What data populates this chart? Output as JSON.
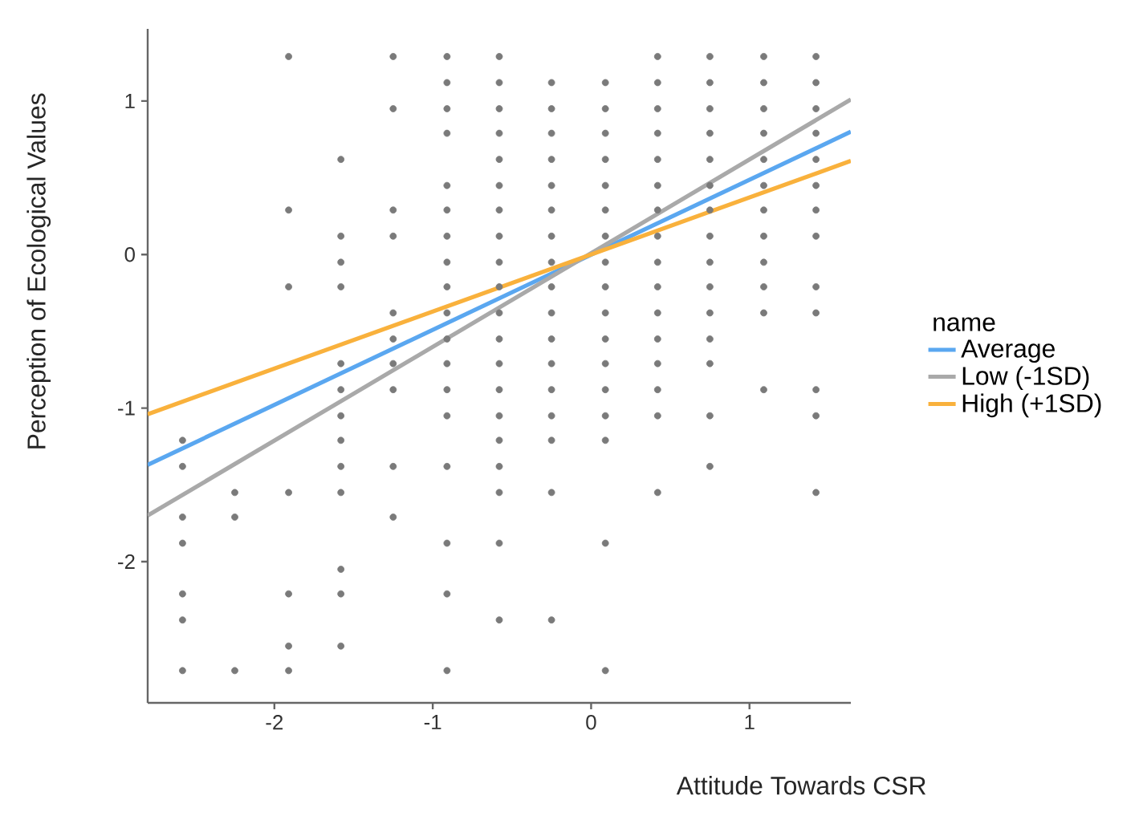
{
  "chart_data": {
    "type": "scatter",
    "xlabel": "Attitude Towards CSR",
    "ylabel": "Perception of Ecological Values",
    "legend_title": "name",
    "legend": "right",
    "grid": false,
    "xlim": [
      -2.8,
      1.64
    ],
    "ylim": [
      -2.92,
      1.47
    ],
    "xticks": [
      -2,
      -1,
      0,
      1
    ],
    "yticks": [
      -2,
      -1,
      0,
      1
    ],
    "series": [
      {
        "marker": "circle",
        "color": "#7a7a7a",
        "x": [
          -2.58,
          -2.58,
          -2.58,
          -2.58,
          -2.58,
          -2.58,
          -2.58,
          -2.25,
          -2.25,
          -2.25,
          -1.91,
          -1.91,
          -1.91,
          -1.91,
          -1.91,
          -1.91,
          -1.91,
          -1.58,
          -1.58,
          -1.58,
          -1.58,
          -1.58,
          -1.58,
          -1.58,
          -1.58,
          -1.58,
          -1.58,
          -1.58,
          -1.58,
          -1.58,
          -1.25,
          -1.25,
          -1.25,
          -1.25,
          -1.25,
          -1.25,
          -1.25,
          -1.25,
          -1.25,
          -1.25,
          -0.91,
          -0.91,
          -0.91,
          -0.91,
          -0.91,
          -0.91,
          -0.91,
          -0.91,
          -0.91,
          -0.91,
          -0.91,
          -0.91,
          -0.91,
          -0.91,
          -0.91,
          -0.91,
          -0.91,
          -0.91,
          -0.58,
          -0.58,
          -0.58,
          -0.58,
          -0.58,
          -0.58,
          -0.58,
          -0.58,
          -0.58,
          -0.58,
          -0.58,
          -0.58,
          -0.58,
          -0.58,
          -0.58,
          -0.58,
          -0.58,
          -0.58,
          -0.58,
          -0.58,
          -0.25,
          -0.25,
          -0.25,
          -0.25,
          -0.25,
          -0.25,
          -0.25,
          -0.25,
          -0.25,
          -0.25,
          -0.25,
          -0.25,
          -0.25,
          -0.25,
          -0.25,
          -0.25,
          -0.25,
          0.09,
          0.09,
          0.09,
          0.09,
          0.09,
          0.09,
          0.09,
          0.09,
          0.09,
          0.09,
          0.09,
          0.09,
          0.09,
          0.09,
          0.09,
          0.09,
          0.09,
          0.42,
          0.42,
          0.42,
          0.42,
          0.42,
          0.42,
          0.42,
          0.42,
          0.42,
          0.42,
          0.42,
          0.42,
          0.42,
          0.42,
          0.42,
          0.42,
          0.75,
          0.75,
          0.75,
          0.75,
          0.75,
          0.75,
          0.75,
          0.75,
          0.75,
          0.75,
          0.75,
          0.75,
          0.75,
          0.75,
          0.75,
          1.09,
          1.09,
          1.09,
          1.09,
          1.09,
          1.09,
          1.09,
          1.09,
          1.09,
          1.09,
          1.09,
          1.09,
          1.42,
          1.42,
          1.42,
          1.42,
          1.42,
          1.42,
          1.42,
          1.42,
          1.42,
          1.42,
          1.42,
          1.42,
          1.42
        ],
        "values": [
          -1.21,
          -1.38,
          -1.71,
          -1.88,
          -2.21,
          -2.38,
          -2.71,
          -1.55,
          -1.71,
          -2.71,
          1.29,
          0.29,
          -0.21,
          -1.55,
          -2.21,
          -2.55,
          -2.71,
          0.62,
          0.12,
          -0.05,
          -0.21,
          -0.71,
          -0.88,
          -1.05,
          -1.21,
          -1.38,
          -1.55,
          -2.05,
          -2.21,
          -2.55,
          1.29,
          0.95,
          0.29,
          0.12,
          -0.38,
          -0.55,
          -0.71,
          -0.88,
          -1.38,
          -1.71,
          1.29,
          1.12,
          0.95,
          0.79,
          0.45,
          0.29,
          0.12,
          -0.05,
          -0.21,
          -0.38,
          -0.55,
          -0.71,
          -0.88,
          -1.05,
          -1.38,
          -1.88,
          -2.21,
          -2.71,
          1.29,
          1.12,
          0.95,
          0.79,
          0.62,
          0.45,
          0.29,
          0.12,
          -0.05,
          -0.21,
          -0.38,
          -0.55,
          -0.71,
          -0.88,
          -1.05,
          -1.21,
          -1.38,
          -1.55,
          -1.88,
          -2.38,
          1.12,
          0.95,
          0.79,
          0.62,
          0.45,
          0.29,
          0.12,
          -0.05,
          -0.21,
          -0.38,
          -0.55,
          -0.71,
          -0.88,
          -1.05,
          -1.21,
          -1.55,
          -2.38,
          1.12,
          0.95,
          0.79,
          0.62,
          0.45,
          0.29,
          0.12,
          -0.05,
          -0.21,
          -0.38,
          -0.55,
          -0.71,
          -0.88,
          -1.05,
          -1.21,
          -1.88,
          -2.71,
          1.29,
          1.12,
          0.95,
          0.79,
          0.62,
          0.45,
          0.29,
          0.12,
          -0.05,
          -0.21,
          -0.38,
          -0.55,
          -0.71,
          -0.88,
          -1.05,
          -1.55,
          1.29,
          1.12,
          0.95,
          0.79,
          0.62,
          0.45,
          0.29,
          0.12,
          -0.05,
          -0.21,
          -0.38,
          -0.55,
          -0.71,
          -1.05,
          -1.38,
          1.29,
          1.12,
          0.95,
          0.79,
          0.62,
          0.45,
          0.29,
          0.12,
          -0.05,
          -0.21,
          -0.38,
          -0.88,
          1.29,
          1.12,
          0.95,
          0.79,
          0.62,
          0.45,
          0.29,
          0.12,
          -0.21,
          -0.38,
          -0.88,
          -1.05,
          -1.55
        ]
      },
      {
        "type": "line",
        "name": "Average",
        "marker": "none",
        "color": "#5aa7f0",
        "x": [
          -2.8,
          1.64
        ],
        "values": [
          -1.37,
          0.8
        ]
      },
      {
        "type": "line",
        "name": "Low (-1SD)",
        "marker": "none",
        "color": "#a9a9a9",
        "x": [
          -2.8,
          1.64
        ],
        "values": [
          -1.7,
          1.01
        ]
      },
      {
        "type": "line",
        "name": "High (+1SD)",
        "marker": "none",
        "color": "#f9b13c",
        "x": [
          -2.8,
          1.64
        ],
        "values": [
          -1.04,
          0.61
        ]
      }
    ]
  }
}
